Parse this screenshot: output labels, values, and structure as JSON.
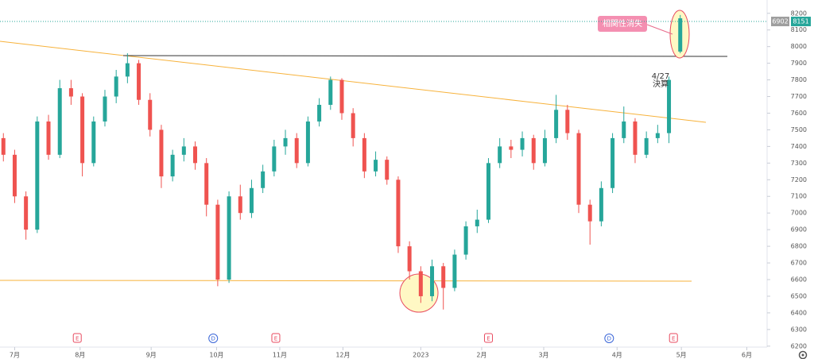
{
  "chart_data": {
    "type": "candlestick",
    "open": [
      7450,
      7350,
      7100,
      6900,
      7550,
      7350,
      7750,
      7700,
      7300,
      7550,
      7700,
      7820,
      7900,
      7680,
      7500,
      7220,
      7350,
      7400,
      7300,
      7050,
      6600,
      7100,
      7000,
      7150,
      7250,
      7400,
      7450,
      7300,
      7550,
      7650,
      7800,
      7600,
      7450,
      7250,
      7320,
      7200,
      6800,
      6650,
      6500,
      6680,
      6550,
      6750,
      6920,
      6960,
      7300,
      7400,
      7380,
      7450,
      7300,
      7450,
      7620,
      7480,
      7050,
      6950,
      7150,
      7450,
      7550,
      7350,
      7450,
      7480,
      7970
    ],
    "high": [
      7480,
      7380,
      7130,
      7580,
      7590,
      7800,
      7800,
      7720,
      7580,
      7740,
      7860,
      7960,
      7920,
      7720,
      7530,
      7380,
      7450,
      7430,
      7330,
      7080,
      7130,
      7170,
      7200,
      7290,
      7440,
      7500,
      7480,
      7580,
      7690,
      7820,
      7810,
      7630,
      7480,
      7370,
      7340,
      7220,
      6830,
      6680,
      6720,
      6700,
      6780,
      6950,
      7020,
      7330,
      7450,
      7440,
      7490,
      7470,
      7500,
      7710,
      7650,
      7500,
      7080,
      7190,
      7480,
      7640,
      7570,
      7490,
      7530,
      7820,
      8190
    ],
    "low": [
      7310,
      7060,
      6840,
      6880,
      7320,
      7330,
      7650,
      7220,
      7280,
      7520,
      7660,
      7780,
      7650,
      7460,
      7150,
      7190,
      7310,
      7260,
      6980,
      6560,
      6580,
      6960,
      6970,
      7120,
      7220,
      7350,
      7270,
      7280,
      7520,
      7620,
      7560,
      7400,
      7210,
      7220,
      7170,
      6760,
      6600,
      6460,
      6470,
      6420,
      6530,
      6720,
      6880,
      6940,
      7270,
      7330,
      7340,
      7260,
      7280,
      7420,
      7440,
      7000,
      6810,
      6920,
      7120,
      7420,
      7300,
      7330,
      7420,
      7420,
      7960
    ],
    "close": [
      7350,
      7100,
      6900,
      7550,
      7350,
      7750,
      7700,
      7300,
      7550,
      7700,
      7820,
      7900,
      7680,
      7500,
      7220,
      7350,
      7400,
      7300,
      7050,
      6600,
      7100,
      7000,
      7150,
      7250,
      7400,
      7450,
      7300,
      7550,
      7650,
      7800,
      7600,
      7450,
      7250,
      7320,
      7200,
      6800,
      6650,
      6500,
      6680,
      6550,
      6750,
      6920,
      6960,
      7300,
      7400,
      7380,
      7450,
      7300,
      7450,
      7620,
      7480,
      7050,
      6950,
      7150,
      7450,
      7550,
      7350,
      7450,
      7480,
      7800,
      8170
    ],
    "up_color": "#26a69a",
    "down_color": "#ef5350",
    "xlim": [
      -0.3,
      67.7
    ],
    "xticks": [
      {
        "value": 1.0,
        "label": "7月"
      },
      {
        "value": 6.8,
        "label": "8月"
      },
      {
        "value": 13.1,
        "label": "9月"
      },
      {
        "value": 18.9,
        "label": "10月"
      },
      {
        "value": 24.5,
        "label": "11月"
      },
      {
        "value": 30.1,
        "label": "12月"
      },
      {
        "value": 37.0,
        "label": "2023"
      },
      {
        "value": 42.4,
        "label": "2月"
      },
      {
        "value": 47.9,
        "label": "3月"
      },
      {
        "value": 54.4,
        "label": "4月"
      },
      {
        "value": 60.1,
        "label": "5月"
      },
      {
        "value": 65.9,
        "label": "6月"
      }
    ],
    "ylim": [
      6180,
      8280
    ],
    "yticks": [
      6200,
      6300,
      6400,
      6500,
      6600,
      6700,
      6800,
      6900,
      7000,
      7100,
      7200,
      7300,
      7400,
      7500,
      7600,
      7700,
      7800,
      7900,
      8000,
      8100,
      8200
    ],
    "grid": false,
    "events": [
      {
        "label": "E",
        "x": 6.55
      },
      {
        "label": "D",
        "x": 18.6
      },
      {
        "label": "E",
        "x": 24.15
      },
      {
        "label": "E",
        "x": 43.0
      },
      {
        "label": "D",
        "x": 53.7
      },
      {
        "label": "E",
        "x": 59.4
      }
    ],
    "price_tags": [
      6902,
      8151
    ],
    "annotations": {
      "note": "相関性消失",
      "date": "4/27",
      "event": "決算"
    }
  }
}
